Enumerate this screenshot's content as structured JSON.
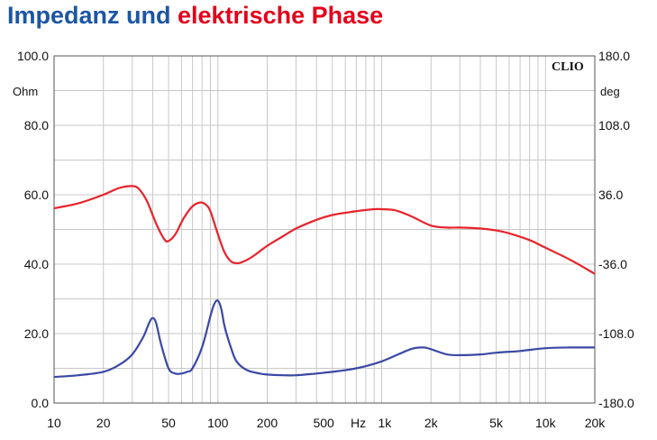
{
  "title": {
    "part1": "Impedanz und",
    "part2": "elektrische Phase"
  },
  "brand": "CLIO",
  "chart_data": {
    "type": "line",
    "x_scale": "log",
    "xlim": [
      10,
      20000
    ],
    "grid": true,
    "x_ticks": [
      {
        "v": 10,
        "label": "10"
      },
      {
        "v": 20,
        "label": "20"
      },
      {
        "v": 50,
        "label": "50"
      },
      {
        "v": 100,
        "label": "100"
      },
      {
        "v": 200,
        "label": "200"
      },
      {
        "v": 500,
        "label": "500"
      },
      {
        "v": 1000,
        "label": "1k"
      },
      {
        "v": 2000,
        "label": "2k"
      },
      {
        "v": 5000,
        "label": "5k"
      },
      {
        "v": 10000,
        "label": "10k"
      },
      {
        "v": 20000,
        "label": "20k"
      }
    ],
    "x_unit_label": "Hz",
    "y_left": {
      "unit": "Ohm",
      "ylim": [
        0,
        100
      ],
      "ticks": [
        {
          "v": 0,
          "label": "0.0"
        },
        {
          "v": 20,
          "label": "20.0"
        },
        {
          "v": 40,
          "label": "40.0"
        },
        {
          "v": 60,
          "label": "60.0"
        },
        {
          "v": 80,
          "label": "80.0"
        },
        {
          "v": 100,
          "label": "100.0"
        }
      ]
    },
    "y_right": {
      "unit": "deg",
      "ylim": [
        -180,
        180
      ],
      "ticks": [
        {
          "v": -180,
          "label": "-180.0"
        },
        {
          "v": -108,
          "label": "-108.0"
        },
        {
          "v": -36,
          "label": "-36.0"
        },
        {
          "v": 36,
          "label": "36.0"
        },
        {
          "v": 108,
          "label": "108.0"
        },
        {
          "v": 180,
          "label": "180.0"
        }
      ]
    },
    "series": [
      {
        "axis": "right",
        "color": "#e8232b",
        "x": [
          10,
          14,
          20,
          25,
          30,
          33,
          37,
          42,
          47,
          50,
          55,
          62,
          70,
          78,
          84,
          90,
          100,
          110,
          120,
          130,
          140,
          160,
          200,
          250,
          300,
          400,
          500,
          700,
          900,
          1000,
          1200,
          1500,
          2000,
          2500,
          3000,
          4000,
          5000,
          6000,
          8000,
          10000,
          14000,
          20000
        ],
        "y": [
          22,
          27,
          36,
          43,
          45,
          42,
          29,
          6,
          -10,
          -12,
          -5,
          12,
          24,
          28,
          26,
          19,
          -5,
          -24,
          -33,
          -35,
          -34,
          -29,
          -17,
          -7,
          1,
          10,
          15,
          19,
          21,
          21,
          20,
          14,
          4,
          2,
          2,
          1,
          -1,
          -4,
          -11,
          -19,
          -31,
          -46
        ]
      },
      {
        "axis": "left",
        "color": "#3a49a4",
        "x": [
          10,
          14,
          20,
          25,
          30,
          35,
          38,
          40,
          42,
          45,
          50,
          55,
          60,
          65,
          70,
          80,
          90,
          95,
          100,
          105,
          110,
          120,
          130,
          150,
          180,
          200,
          250,
          300,
          400,
          500,
          700,
          1000,
          1500,
          1800,
          2000,
          2500,
          3000,
          4000,
          5000,
          7000,
          10000,
          14000,
          20000
        ],
        "y": [
          7.5,
          8,
          9,
          11,
          14,
          19,
          23,
          24.5,
          23,
          17,
          10,
          8.5,
          8.5,
          9,
          10,
          16,
          25,
          28.5,
          29.5,
          27,
          22,
          16,
          12,
          9.5,
          8.5,
          8.2,
          8,
          8,
          8.5,
          9,
          10,
          12,
          15.5,
          16,
          15.5,
          14,
          13.8,
          14,
          14.5,
          15,
          15.8,
          16,
          16
        ]
      }
    ]
  }
}
